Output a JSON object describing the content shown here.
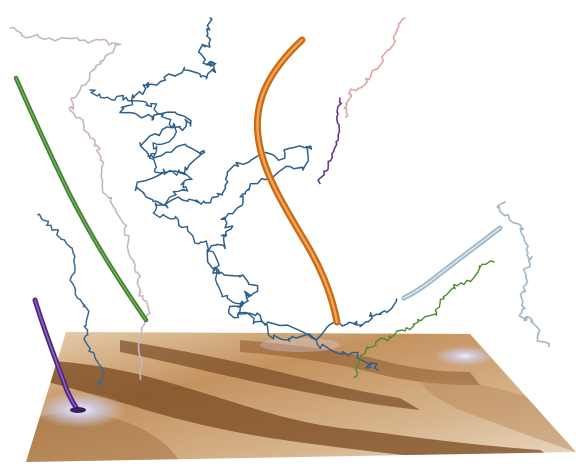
{
  "scene": {
    "background": "#ffffff",
    "terrain": {
      "colors": {
        "base": "#c89868",
        "light": "#ead6b8",
        "dark": "#7a4a22",
        "shadow": "#5e3616",
        "cold": "#c9c8e6"
      }
    },
    "trajectories": [
      {
        "id": "dense-blue",
        "color": "#2d5f8c",
        "style": "tangled-line"
      },
      {
        "id": "blue-left",
        "color": "#3a6a93",
        "style": "tangled-line"
      },
      {
        "id": "pink-left",
        "color": "#c9b3c9",
        "style": "tangled-line"
      },
      {
        "id": "pink-right",
        "color": "#d9a49a",
        "style": "line"
      },
      {
        "id": "purple-small",
        "color": "#6a3a8a",
        "style": "line"
      },
      {
        "id": "green-tube",
        "color": "#3f7f2f",
        "style": "tube"
      },
      {
        "id": "orange-tube",
        "color": "#d97a1f",
        "style": "tube"
      },
      {
        "id": "purple-tube",
        "color": "#5a2f8a",
        "style": "tube"
      },
      {
        "id": "green-right",
        "color": "#4b8c2c",
        "style": "line"
      },
      {
        "id": "light-blue-tube",
        "color": "#a9c0d0",
        "style": "tube"
      },
      {
        "id": "light-blue-right",
        "color": "#9fb8c9",
        "style": "tangled-line"
      }
    ]
  }
}
